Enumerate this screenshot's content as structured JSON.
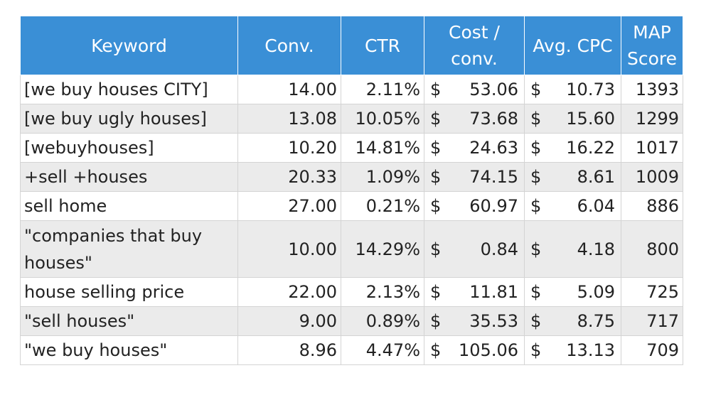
{
  "chart_data": {
    "type": "table",
    "columns": [
      "Keyword",
      "Conv.",
      "CTR",
      "Cost / conv.",
      "Avg. CPC",
      "MAP Score"
    ],
    "currency_symbol": "$",
    "rows": [
      {
        "keyword": "[we buy houses CITY]",
        "conv": "14.00",
        "ctr": "2.11%",
        "cost_conv": "53.06",
        "avg_cpc": "10.73",
        "map_score": "1393"
      },
      {
        "keyword": "[we buy ugly houses]",
        "conv": "13.08",
        "ctr": "10.05%",
        "cost_conv": "73.68",
        "avg_cpc": "15.60",
        "map_score": "1299"
      },
      {
        "keyword": "[webuyhouses]",
        "conv": "10.20",
        "ctr": "14.81%",
        "cost_conv": "24.63",
        "avg_cpc": "16.22",
        "map_score": "1017"
      },
      {
        "keyword": " +sell +houses",
        "conv": "20.33",
        "ctr": "1.09%",
        "cost_conv": "74.15",
        "avg_cpc": "8.61",
        "map_score": "1009"
      },
      {
        "keyword": "sell home",
        "conv": "27.00",
        "ctr": "0.21%",
        "cost_conv": "60.97",
        "avg_cpc": "6.04",
        "map_score": "886"
      },
      {
        "keyword": "\"companies that buy houses\"",
        "conv": "10.00",
        "ctr": "14.29%",
        "cost_conv": "0.84",
        "avg_cpc": "4.18",
        "map_score": "800"
      },
      {
        "keyword": "house selling price",
        "conv": "22.00",
        "ctr": "2.13%",
        "cost_conv": "11.81",
        "avg_cpc": "5.09",
        "map_score": "725"
      },
      {
        "keyword": "\"sell houses\"",
        "conv": "9.00",
        "ctr": "0.89%",
        "cost_conv": "35.53",
        "avg_cpc": "8.75",
        "map_score": "717"
      },
      {
        "keyword": "\"we buy houses\"",
        "conv": "8.96",
        "ctr": "4.47%",
        "cost_conv": "105.06",
        "avg_cpc": "13.13",
        "map_score": "709"
      }
    ]
  },
  "colors": {
    "header_background": "#3a8fd6",
    "header_text": "#ffffff",
    "alternate_row": "#ebebeb"
  }
}
